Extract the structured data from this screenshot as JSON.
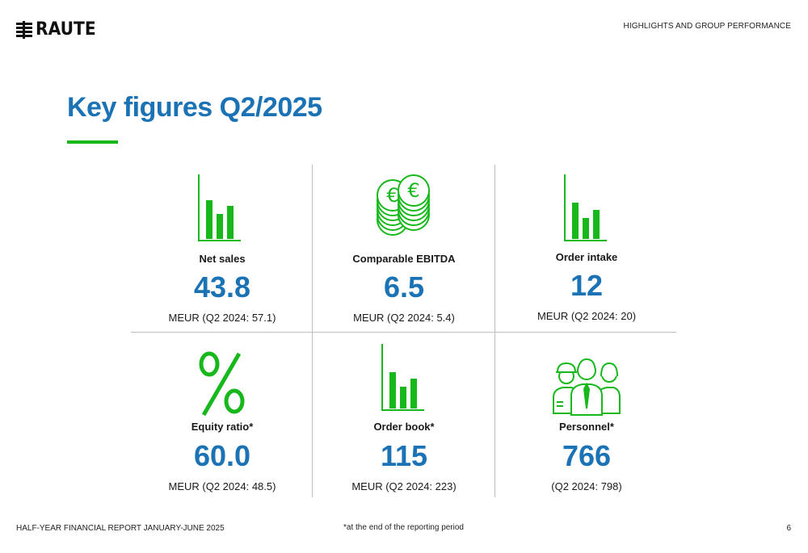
{
  "header": {
    "logo_text": "RAUTE",
    "section_label": "HIGHLIGHTS AND GROUP PERFORMANCE"
  },
  "title": "Key figures Q2/2025",
  "colors": {
    "accent_blue": "#1b73b6",
    "accent_green": "#17b81b"
  },
  "figures": [
    {
      "icon": "bar-chart-icon",
      "label": "Net sales",
      "value": "43.8",
      "sub": "MEUR (Q2 2024: 57.1)"
    },
    {
      "icon": "euro-coins-icon",
      "label": "Comparable EBITDA",
      "value": "6.5",
      "sub": "MEUR (Q2 2024: 5.4)"
    },
    {
      "icon": "bar-chart-icon",
      "label": "Order intake",
      "value": "12",
      "sub": "MEUR (Q2 2024: 20)"
    },
    {
      "icon": "percent-icon",
      "label": "Equity ratio*",
      "value": "60.0",
      "sub": "MEUR (Q2 2024: 48.5)"
    },
    {
      "icon": "bar-chart-icon",
      "label": "Order book*",
      "value": "115",
      "sub": "MEUR (Q2 2024: 223)"
    },
    {
      "icon": "personnel-icon",
      "label": "Personnel*",
      "value": "766",
      "sub": "(Q2 2024: 798)"
    }
  ],
  "footer": {
    "report_name": "HALF-YEAR FINANCIAL REPORT JANUARY-JUNE 2025",
    "footnote": "*at the end of the reporting period",
    "page_number": "6"
  }
}
